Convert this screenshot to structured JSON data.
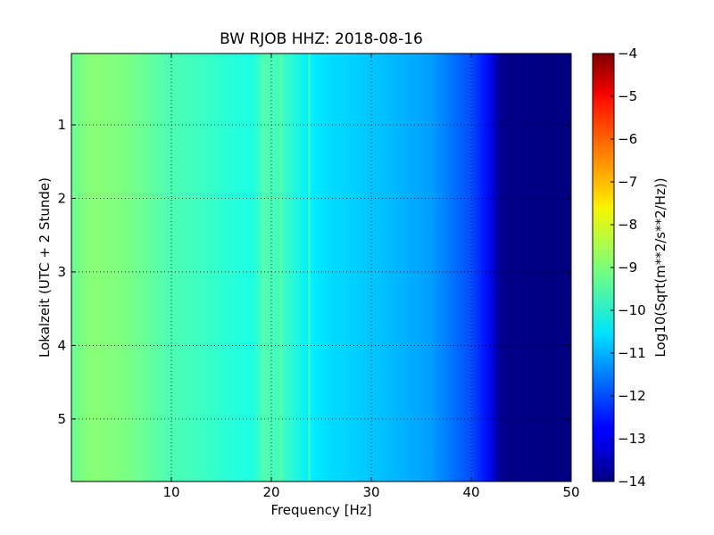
{
  "chart_data": {
    "type": "heatmap",
    "title": "BW RJOB HHZ: 2018-08-16",
    "xlabel": "Frequency [Hz]",
    "ylabel": "Lokalzeit (UTC + 2 Stunde)",
    "xlim": [
      0,
      50
    ],
    "ylim": [
      5.85,
      0.03
    ],
    "x_ticks": [
      10,
      20,
      30,
      40,
      50
    ],
    "y_ticks": [
      1,
      2,
      3,
      4,
      5
    ],
    "grid": true,
    "colormap": "jet",
    "colorbar": {
      "label": "Log10(Sqrt(m**2/s**2/Hz))",
      "range": [
        -14,
        -4
      ],
      "ticks": [
        -4,
        -5,
        -6,
        -7,
        -8,
        -9,
        -10,
        -11,
        -12,
        -13,
        -14
      ]
    },
    "frequency_profile": {
      "x": [
        0,
        2,
        5,
        8,
        10,
        12,
        15,
        18,
        19.3,
        21,
        23.8,
        26,
        30,
        33,
        36,
        38,
        40,
        41.5,
        42.5,
        43,
        50
      ],
      "values": [
        -9.2,
        -8.9,
        -9.0,
        -9.3,
        -9.5,
        -9.6,
        -9.8,
        -10.0,
        -9.5,
        -9.6,
        -10.4,
        -10.6,
        -10.8,
        -11.0,
        -11.2,
        -11.6,
        -12.0,
        -12.6,
        -13.4,
        -13.9,
        -14.0
      ]
    },
    "spectral_lines_hz": [
      19.3,
      21.0,
      23.8
    ]
  }
}
